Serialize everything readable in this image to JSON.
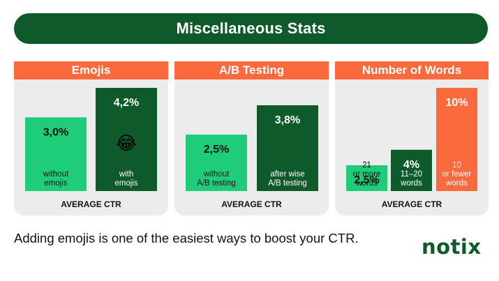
{
  "banner": {
    "title": "Miscellaneous Stats"
  },
  "chart_data": [
    {
      "type": "bar",
      "title": "Emojis",
      "xlabel": "AVERAGE CTR",
      "categories": [
        "without emojis",
        "with emojis"
      ],
      "values": [
        3.0,
        4.2
      ],
      "value_labels": [
        "3,0%",
        "4,2%"
      ],
      "bar_label_lines": [
        [
          "without",
          "emojis"
        ],
        [
          "with",
          "emojis"
        ]
      ],
      "bar_colors": [
        "#1fcc7a",
        "#0f5a2a"
      ],
      "ylim": [
        0,
        4.2
      ],
      "emoji_on_bar": {
        "index": 1,
        "glyph": "😂"
      }
    },
    {
      "type": "bar",
      "title": "A/B Testing",
      "xlabel": "AVERAGE CTR",
      "categories": [
        "without A/B testing",
        "after wise A/B testing"
      ],
      "values": [
        2.5,
        3.8
      ],
      "value_labels": [
        "2,5%",
        "3,8%"
      ],
      "bar_label_lines": [
        [
          "without",
          "A/B testing"
        ],
        [
          "after wise",
          "A/B testing"
        ]
      ],
      "bar_colors": [
        "#1fcc7a",
        "#0f5a2a"
      ],
      "ylim": [
        0,
        4.2
      ]
    },
    {
      "type": "bar",
      "title": "Number of Words",
      "xlabel": "AVERAGE CTR",
      "categories": [
        "21 or more words",
        "11–20 words",
        "10 or fewer words"
      ],
      "values": [
        2.5,
        4,
        10
      ],
      "value_labels": [
        "2,5%",
        "4%",
        "10%"
      ],
      "bar_label_lines": [
        [
          "21",
          "or more",
          "words"
        ],
        [
          "11–20",
          "words"
        ],
        [
          "10",
          "or fewer",
          "words"
        ]
      ],
      "bar_colors": [
        "#1fcc7a",
        "#0f5a2a",
        "#fb6a3d"
      ],
      "ylim": [
        0,
        10
      ]
    }
  ],
  "footer": {
    "caption": "Adding emojis is one of the easiest ways to boost your CTR."
  },
  "brand": {
    "logo_text": "notix"
  },
  "colors": {
    "dark_green": "#0f5a2a",
    "light_green": "#1fcc7a",
    "orange": "#fb6a3d",
    "panel_bg": "#ececec"
  }
}
